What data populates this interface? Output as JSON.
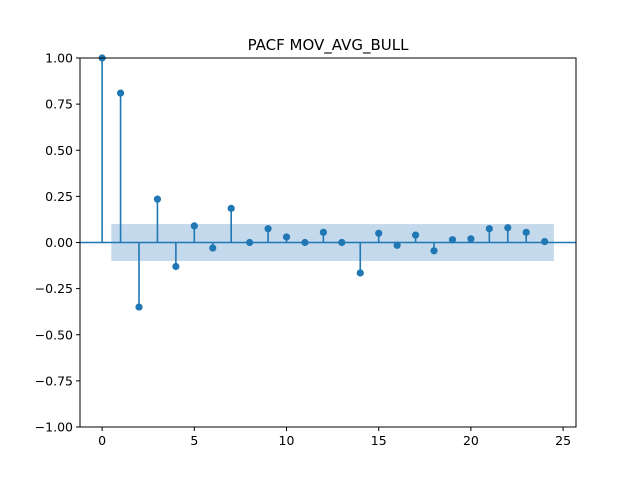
{
  "chart_data": {
    "type": "stem",
    "title": "PACF MOV_AVG_BULL",
    "xlabel": "",
    "ylabel": "",
    "xlim": [
      -1.2,
      25.7
    ],
    "ylim": [
      -1.0,
      1.0
    ],
    "x_ticks": [
      0,
      5,
      10,
      15,
      20,
      25
    ],
    "x_tick_labels": [
      "0",
      "5",
      "10",
      "15",
      "20",
      "25"
    ],
    "y_ticks": [
      -1.0,
      -0.75,
      -0.5,
      -0.25,
      0.0,
      0.25,
      0.5,
      0.75,
      1.0
    ],
    "y_tick_labels": [
      "−1.00",
      "−0.75",
      "−0.50",
      "−0.25",
      "0.00",
      "0.25",
      "0.50",
      "0.75",
      "1.00"
    ],
    "grid": false,
    "confidence_band": {
      "x_range": [
        0.5,
        24.5
      ],
      "lower": -0.1,
      "upper": 0.1
    },
    "lags": [
      0,
      1,
      2,
      3,
      4,
      5,
      6,
      7,
      8,
      9,
      10,
      11,
      12,
      13,
      14,
      15,
      16,
      17,
      18,
      19,
      20,
      21,
      22,
      23,
      24
    ],
    "values": [
      1.0,
      0.81,
      -0.35,
      0.235,
      -0.13,
      0.09,
      -0.03,
      0.185,
      0.0,
      0.075,
      0.03,
      0.0,
      0.055,
      0.0,
      -0.165,
      0.05,
      -0.015,
      0.04,
      -0.045,
      0.015,
      0.02,
      0.075,
      0.08,
      0.055,
      0.005
    ]
  },
  "colors": {
    "series": "#1f77b4",
    "band": "#c5d9ec"
  }
}
